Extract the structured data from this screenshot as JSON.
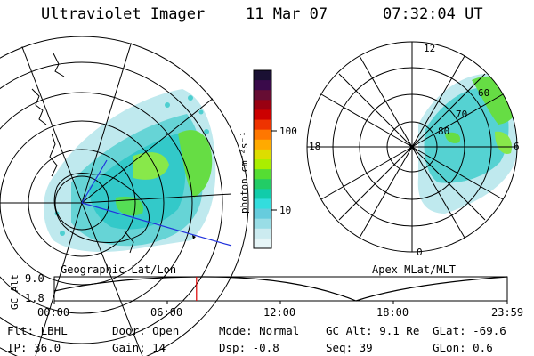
{
  "header": {
    "instrument": "Ultraviolet Imager",
    "date": "11 Mar 07",
    "time": "07:32:04 UT"
  },
  "colorbar": {
    "unit_label": "photon cm⁻²s⁻¹",
    "ticks": [
      "100",
      "10"
    ],
    "colors": [
      "#1a1033",
      "#3a0a4a",
      "#660d33",
      "#990011",
      "#cc0000",
      "#ee3300",
      "#ff7700",
      "#ffaa00",
      "#dddd00",
      "#aaee00",
      "#55dd33",
      "#22cc66",
      "#11ccaa",
      "#33dddd",
      "#66ccdd",
      "#99dde6",
      "#ccebf0",
      "#e6f5f7"
    ]
  },
  "left_panel": {
    "caption": "Geographic Lat/Lon"
  },
  "right_panel": {
    "caption": "Apex MLat/MLT",
    "mlt_labels": {
      "top": "12",
      "left": "18",
      "right": "6",
      "bottom": "0"
    },
    "mlat_labels": [
      "60",
      "70",
      "80"
    ]
  },
  "timeline": {
    "y_axis_label": "GC Alt",
    "y_ticks": [
      "9.0",
      "1.8"
    ],
    "x_ticks": [
      "00:00",
      "06:00",
      "12:00",
      "18:00",
      "23:59"
    ],
    "current_time_fraction": 0.314
  },
  "status": {
    "flt": "Flt: LBHL",
    "ip": "IP: 36.0",
    "door": "Door: Open",
    "gain": "Gain: 14",
    "mode": "Mode: Normal",
    "dsp": "Dsp:   -0.8",
    "gc_alt": "GC Alt: 9.1 Re",
    "seq": "Seq: 39",
    "glat": "GLat:  -69.6",
    "glon": "GLon:   0.6"
  }
}
